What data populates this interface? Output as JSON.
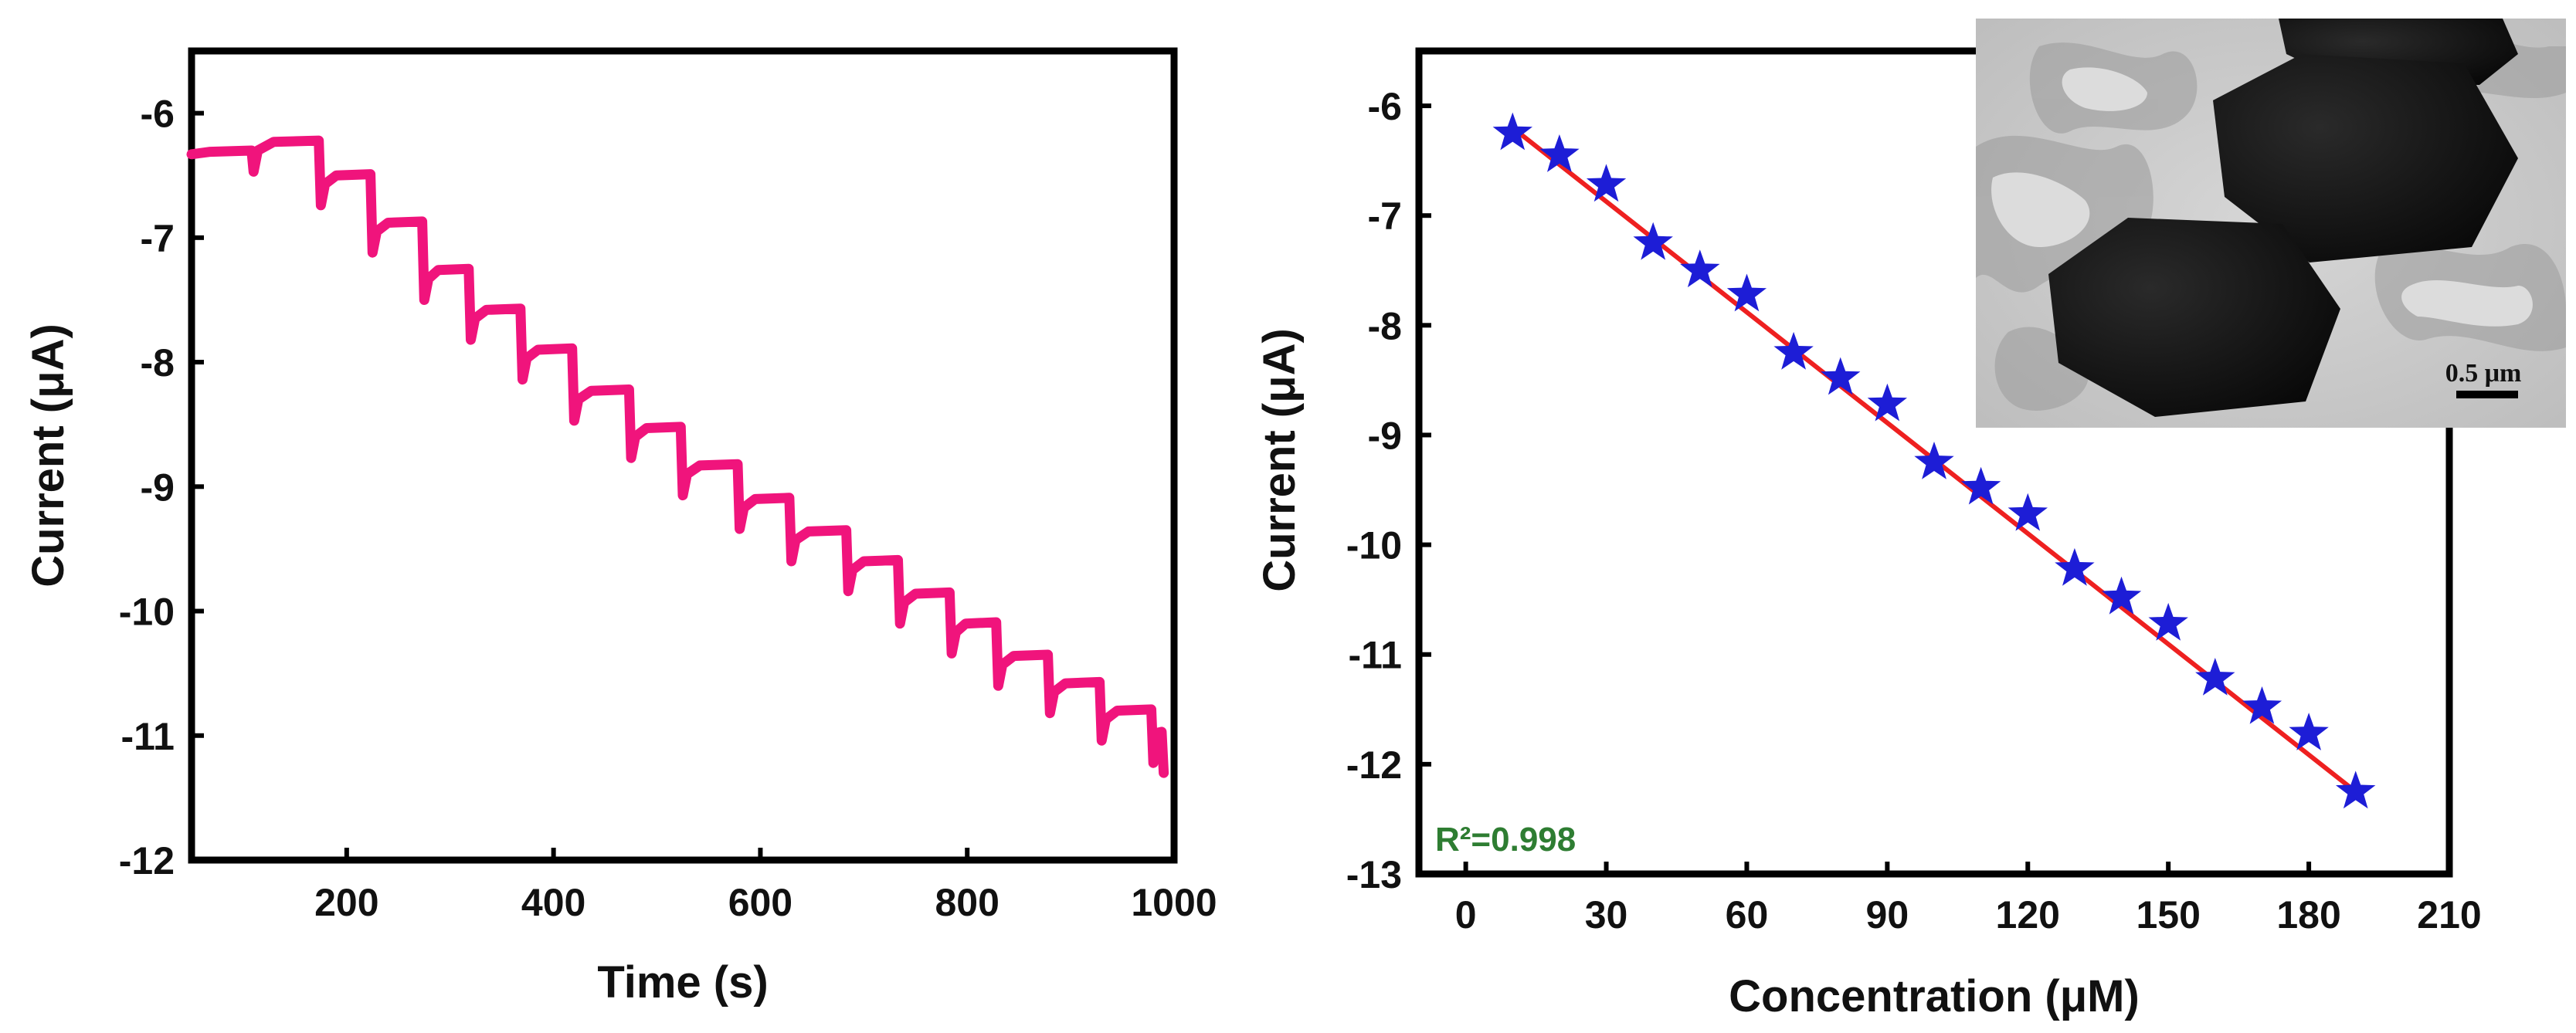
{
  "chart_data": [
    {
      "type": "line",
      "name": "amperometric-response",
      "title": "",
      "xlabel": "Time (s)",
      "ylabel": "Current (μA)",
      "xlim": [
        50,
        1000
      ],
      "ylim": [
        -12,
        -5.5
      ],
      "xticks": [
        200,
        400,
        600,
        800,
        1000
      ],
      "yticks": [
        -6,
        -7,
        -8,
        -9,
        -10,
        -11,
        -12
      ],
      "color": "#f0147c",
      "series": [
        {
          "name": "current",
          "step_times": [
            50,
            110,
            175,
            225,
            275,
            320,
            370,
            420,
            475,
            525,
            580,
            630,
            685,
            735,
            785,
            830,
            880,
            930,
            980
          ],
          "step_values": [
            -6.33,
            -6.25,
            -6.52,
            -6.9,
            -7.28,
            -7.6,
            -7.92,
            -8.25,
            -8.55,
            -8.85,
            -9.12,
            -9.38,
            -9.62,
            -9.88,
            -10.12,
            -10.38,
            -10.6,
            -10.82,
            -11.0
          ],
          "end": [
            990,
            -11.3
          ]
        }
      ]
    },
    {
      "type": "scatter",
      "name": "calibration-plot",
      "title": "",
      "xlabel": "Concentration (μM)",
      "ylabel": "Current (μA)",
      "xlim": [
        -10,
        210
      ],
      "ylim": [
        -13,
        -5.5
      ],
      "xticks": [
        0,
        30,
        60,
        90,
        120,
        150,
        180,
        210
      ],
      "yticks": [
        -6,
        -7,
        -8,
        -9,
        -10,
        -11,
        -12,
        -13
      ],
      "marker_color": "#1d1dd6",
      "fit_color": "#ee2020",
      "annotation": "R²=0.998",
      "annotation_color": "#2e7d32",
      "series": [
        {
          "name": "data",
          "x": [
            10,
            20,
            30,
            40,
            50,
            60,
            70,
            80,
            90,
            100,
            110,
            120,
            130,
            140,
            150,
            160,
            170,
            180,
            190
          ],
          "y": [
            -6.25,
            -6.45,
            -6.72,
            -7.25,
            -7.5,
            -7.72,
            -8.25,
            -8.48,
            -8.72,
            -9.25,
            -9.48,
            -9.72,
            -10.22,
            -10.48,
            -10.72,
            -11.22,
            -11.48,
            -11.72,
            -12.25
          ]
        }
      ],
      "fit": {
        "x": [
          10,
          190
        ],
        "y": [
          -6.2,
          -12.25
        ]
      }
    }
  ],
  "inset": {
    "description_label": "TEM image",
    "scale_bar_label": "0.5 μm"
  }
}
